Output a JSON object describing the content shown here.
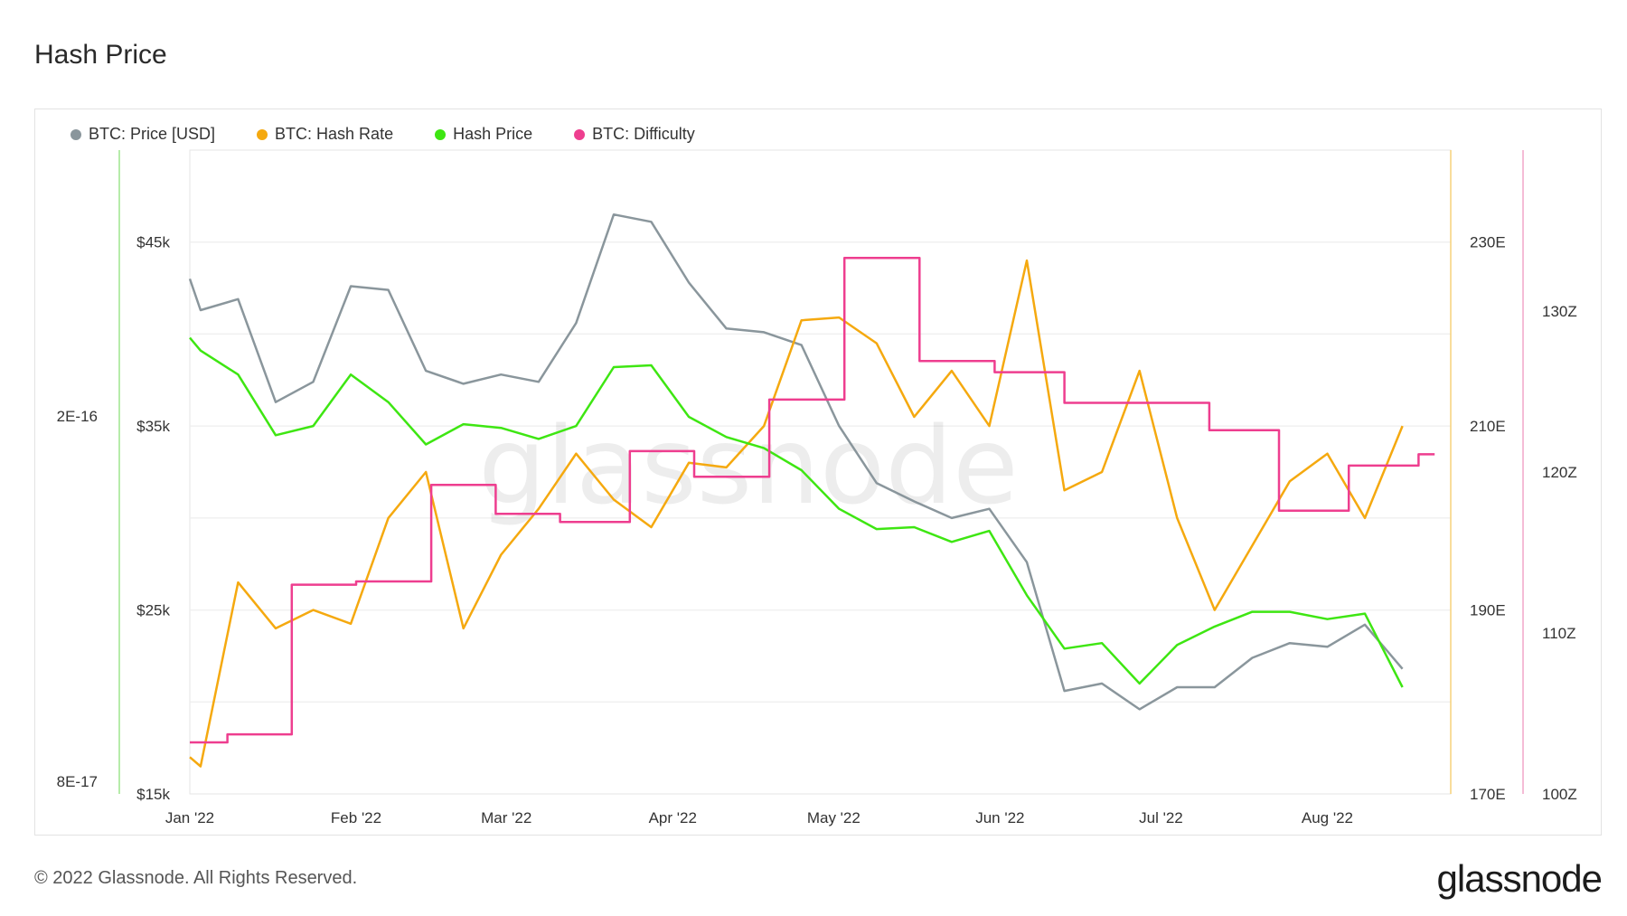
{
  "title": "Hash Price",
  "footer": "© 2022 Glassnode. All Rights Reserved.",
  "brand": "glassnode",
  "watermark": "glassnode",
  "legend": [
    {
      "label": "BTC: Price [USD]",
      "color": "#8a969c"
    },
    {
      "label": "BTC: Hash Rate",
      "color": "#f5a90f"
    },
    {
      "label": "Hash Price",
      "color": "#3ee612"
    },
    {
      "label": "BTC: Difficulty",
      "color": "#ee3e8f"
    }
  ],
  "chart_data": {
    "type": "line",
    "x_ticks": [
      "Jan '22",
      "Feb '22",
      "Mar '22",
      "Apr '22",
      "May '22",
      "Jun '22",
      "Jul '22",
      "Aug '22"
    ],
    "axes": {
      "hash_price": {
        "ticks": [
          "8E-17",
          "2E-16"
        ],
        "color": "#a6e89a"
      },
      "price": {
        "ticks": [
          "$15k",
          "$25k",
          "$35k",
          "$45k"
        ],
        "range": [
          15000,
          50000
        ]
      },
      "hash_rate": {
        "ticks": [
          "170E",
          "190E",
          "210E",
          "230E"
        ],
        "range": [
          170,
          240
        ]
      },
      "difficulty": {
        "ticks": [
          "100Z",
          "110Z",
          "120Z",
          "130Z"
        ],
        "range": [
          100,
          140
        ]
      }
    },
    "series": [
      {
        "name": "BTC: Price [USD]",
        "axis": "price",
        "color": "#8a969c",
        "x": [
          "2022-01-01",
          "2022-01-03",
          "2022-01-10",
          "2022-01-17",
          "2022-01-24",
          "2022-01-31",
          "2022-02-07",
          "2022-02-14",
          "2022-02-21",
          "2022-02-28",
          "2022-03-07",
          "2022-03-14",
          "2022-03-21",
          "2022-03-28",
          "2022-04-04",
          "2022-04-11",
          "2022-04-18",
          "2022-04-25",
          "2022-05-02",
          "2022-05-09",
          "2022-05-16",
          "2022-05-23",
          "2022-05-30",
          "2022-06-06",
          "2022-06-13",
          "2022-06-20",
          "2022-06-27",
          "2022-07-04",
          "2022-07-11",
          "2022-07-18",
          "2022-07-25",
          "2022-08-01",
          "2022-08-08",
          "2022-08-15"
        ],
        "values": [
          43000,
          41300,
          41900,
          36300,
          37400,
          42600,
          42400,
          38000,
          37300,
          37800,
          37400,
          40600,
          46500,
          46100,
          42800,
          40300,
          40100,
          39400,
          35000,
          31900,
          30900,
          30000,
          30500,
          27600,
          20600,
          21000,
          19600,
          20800,
          20800,
          22400,
          23200,
          23000,
          24200,
          21800
        ]
      },
      {
        "name": "BTC: Hash Rate",
        "axis": "hash_rate",
        "color": "#f5a90f",
        "x": [
          "2022-01-01",
          "2022-01-03",
          "2022-01-10",
          "2022-01-17",
          "2022-01-24",
          "2022-01-31",
          "2022-02-07",
          "2022-02-14",
          "2022-02-21",
          "2022-02-28",
          "2022-03-07",
          "2022-03-14",
          "2022-03-21",
          "2022-03-28",
          "2022-04-04",
          "2022-04-11",
          "2022-04-18",
          "2022-04-25",
          "2022-05-02",
          "2022-05-09",
          "2022-05-16",
          "2022-05-23",
          "2022-05-30",
          "2022-06-06",
          "2022-06-13",
          "2022-06-20",
          "2022-06-27",
          "2022-07-04",
          "2022-07-11",
          "2022-07-18",
          "2022-07-25",
          "2022-08-01",
          "2022-08-08",
          "2022-08-15"
        ],
        "values": [
          174,
          173,
          193,
          188,
          190,
          188.5,
          200,
          205,
          188,
          196,
          201,
          207,
          202,
          199,
          206,
          205.5,
          210,
          221.5,
          221.8,
          219,
          211,
          216,
          210,
          228,
          203,
          205,
          216,
          200,
          190,
          197,
          204,
          207,
          200,
          210
        ]
      },
      {
        "name": "Hash Price",
        "axis": "price",
        "color": "#3ee612",
        "x": [
          "2022-01-01",
          "2022-01-03",
          "2022-01-10",
          "2022-01-17",
          "2022-01-24",
          "2022-01-31",
          "2022-02-07",
          "2022-02-14",
          "2022-02-21",
          "2022-02-28",
          "2022-03-07",
          "2022-03-14",
          "2022-03-21",
          "2022-03-28",
          "2022-04-04",
          "2022-04-11",
          "2022-04-18",
          "2022-04-25",
          "2022-05-02",
          "2022-05-09",
          "2022-05-16",
          "2022-05-23",
          "2022-05-30",
          "2022-06-06",
          "2022-06-13",
          "2022-06-20",
          "2022-06-27",
          "2022-07-04",
          "2022-07-11",
          "2022-07-18",
          "2022-07-25",
          "2022-08-01",
          "2022-08-08",
          "2022-08-15"
        ],
        "values": [
          39800,
          39100,
          37800,
          34500,
          35000,
          37800,
          36300,
          34000,
          35100,
          34900,
          34300,
          35000,
          38200,
          38300,
          35500,
          34400,
          33800,
          32600,
          30500,
          29400,
          29500,
          28700,
          29300,
          25800,
          22900,
          23200,
          21000,
          23100,
          24100,
          24900,
          24900,
          24500,
          24800,
          20800
        ]
      },
      {
        "name": "BTC: Difficulty",
        "axis": "difficulty",
        "color": "#ee3e8f",
        "step": true,
        "x": [
          "2022-01-01",
          "2022-01-08",
          "2022-01-20",
          "2022-02-01",
          "2022-02-15",
          "2022-02-27",
          "2022-03-11",
          "2022-03-24",
          "2022-04-05",
          "2022-04-19",
          "2022-05-03",
          "2022-05-17",
          "2022-05-31",
          "2022-06-13",
          "2022-06-26",
          "2022-07-10",
          "2022-07-23",
          "2022-08-05",
          "2022-08-18",
          "2022-08-21"
        ],
        "values": [
          103.2,
          103.7,
          113.0,
          113.2,
          119.2,
          117.4,
          116.9,
          121.3,
          119.7,
          124.5,
          133.3,
          126.9,
          126.2,
          124.3,
          124.3,
          122.6,
          117.6,
          120.4,
          121.1,
          121.1
        ]
      }
    ]
  }
}
